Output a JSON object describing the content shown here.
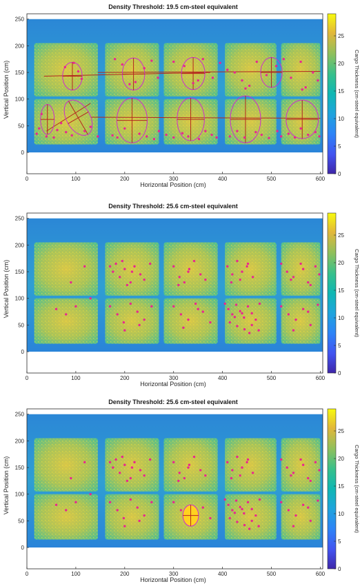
{
  "figure": {
    "colormap": "parula",
    "panels": [
      {
        "title": "Density Threshold: 19.5 cm-steel equivalent",
        "xlabel": "Horizontal Position (cm)",
        "ylabel": "Vertical Position (cm)",
        "colorbar_label": "Cargo Thickness (cm-steel equivalent)",
        "xticks": [
          "0",
          "100",
          "200",
          "300",
          "400",
          "500",
          "600"
        ],
        "yticks": [
          "0",
          "50",
          "100",
          "150",
          "200",
          "250"
        ],
        "cbticks": [
          "0",
          "5",
          "10",
          "15",
          "20",
          "25"
        ]
      },
      {
        "title": "Density Threshold: 25.6 cm-steel equivalent",
        "xlabel": "Horizontal Position (cm)",
        "ylabel": "Vertical Position (cm)",
        "colorbar_label": "Cargo Thickness (cm-steel equivalent)",
        "xticks": [
          "0",
          "100",
          "200",
          "300",
          "400",
          "500",
          "600"
        ],
        "yticks": [
          "0",
          "50",
          "100",
          "150",
          "200",
          "250"
        ],
        "cbticks": [
          "0",
          "5",
          "10",
          "15",
          "20",
          "25"
        ]
      },
      {
        "title": "Density Threshold: 25.6 cm-steel equivalent",
        "xlabel": "Horizontal Position (cm)",
        "ylabel": "Vertical Position (cm)",
        "colorbar_label": "Cargo Thickness (cm-steel equivalent)",
        "xticks": [
          "0",
          "100",
          "200",
          "300",
          "400",
          "500",
          "600"
        ],
        "yticks": [
          "0",
          "50",
          "100",
          "150",
          "200",
          "250"
        ],
        "cbticks": [
          "0",
          "5",
          "10",
          "15",
          "20",
          "25"
        ]
      }
    ]
  },
  "chart_data": [
    {
      "type": "heatmap",
      "title": "Density Threshold: 19.5 cm-steel equivalent",
      "xlabel": "Horizontal Position (cm)",
      "ylabel": "Vertical Position (cm)",
      "colorbar_label": "Cargo Thickness (cm-steel equivalent)",
      "xlim": [
        0,
        605
      ],
      "ylim": [
        -40,
        260
      ],
      "clim": [
        0,
        29
      ],
      "xticks": [
        0,
        100,
        200,
        300,
        400,
        500,
        600
      ],
      "yticks": [
        0,
        50,
        100,
        150,
        200,
        250
      ],
      "cbticks": [
        0,
        5,
        10,
        15,
        20,
        25
      ],
      "regions": [
        {
          "x": [
            15,
            145
          ],
          "y": [
            105,
            205
          ]
        },
        {
          "x": [
            160,
            270
          ],
          "y": [
            105,
            205
          ]
        },
        {
          "x": [
            280,
            390
          ],
          "y": [
            105,
            205
          ]
        },
        {
          "x": [
            405,
            510
          ],
          "y": [
            105,
            205
          ]
        },
        {
          "x": [
            520,
            600
          ],
          "y": [
            105,
            205
          ]
        },
        {
          "x": [
            15,
            145
          ],
          "y": [
            15,
            100
          ]
        },
        {
          "x": [
            160,
            270
          ],
          "y": [
            15,
            100
          ]
        },
        {
          "x": [
            280,
            390
          ],
          "y": [
            15,
            100
          ]
        },
        {
          "x": [
            405,
            510
          ],
          "y": [
            15,
            100
          ]
        },
        {
          "x": [
            520,
            600
          ],
          "y": [
            15,
            100
          ]
        }
      ],
      "ellipses": [
        {
          "cx": 93,
          "cy": 143,
          "rx": 20,
          "ry": 26,
          "angle": 0
        },
        {
          "cx": 218,
          "cy": 147,
          "rx": 23,
          "ry": 30,
          "angle": 0
        },
        {
          "cx": 340,
          "cy": 148,
          "rx": 24,
          "ry": 30,
          "angle": 0
        },
        {
          "cx": 500,
          "cy": 150,
          "rx": 22,
          "ry": 28,
          "angle": 0
        },
        {
          "cx": 42,
          "cy": 62,
          "rx": 14,
          "ry": 28,
          "angle": 0
        },
        {
          "cx": 105,
          "cy": 65,
          "rx": 24,
          "ry": 36,
          "angle": 30
        },
        {
          "cx": 215,
          "cy": 60,
          "rx": 31,
          "ry": 42,
          "angle": 0
        },
        {
          "cx": 335,
          "cy": 62,
          "rx": 28,
          "ry": 40,
          "angle": 0
        },
        {
          "cx": 447,
          "cy": 62,
          "rx": 31,
          "ry": 44,
          "angle": 0
        },
        {
          "cx": 563,
          "cy": 62,
          "rx": 33,
          "ry": 36,
          "angle": 0
        }
      ],
      "lines": [
        {
          "x": [
            35,
            375
          ],
          "y": [
            143,
            150
          ]
        },
        {
          "x": [
            145,
            600
          ],
          "y": [
            150,
            152
          ]
        },
        {
          "x": [
            130,
            600
          ],
          "y": [
            66,
            64
          ]
        },
        {
          "x": [
            40,
            130
          ],
          "y": [
            40,
            92
          ]
        }
      ],
      "series": [
        {
          "x": [
            20,
            25,
            40,
            30,
            55,
            62,
            70,
            80,
            92,
            118,
            130,
            145,
            175,
            185,
            200,
            230,
            245,
            260,
            270,
            285,
            300,
            318,
            330,
            352,
            365,
            378,
            388,
            415,
            430,
            445,
            468,
            480,
            495,
            512,
            520,
            535,
            548,
            560,
            575,
            590,
            598,
            210,
            222,
            340,
            350,
            447,
            455,
            563,
            570
          ],
          "y": [
            35,
            45,
            30,
            72,
            28,
            42,
            55,
            38,
            32,
            40,
            48,
            30,
            32,
            28,
            45,
            35,
            30,
            25,
            40,
            33,
            28,
            36,
            30,
            25,
            40,
            33,
            28,
            30,
            40,
            28,
            38,
            33,
            27,
            40,
            30,
            35,
            28,
            45,
            33,
            38,
            30,
            128,
            132,
            130,
            135,
            120,
            125,
            118,
            122
          ]
        },
        {
          "x": [
            78,
            96,
            105,
            112,
            180,
            195,
            240,
            255,
            268,
            300,
            322,
            360,
            380,
            395,
            410,
            425,
            440,
            470,
            490,
            510,
            525,
            540,
            560,
            585,
            595
          ],
          "y": [
            160,
            168,
            152,
            138,
            175,
            165,
            158,
            172,
            140,
            170,
            162,
            175,
            140,
            168,
            155,
            150,
            135,
            170,
            145,
            162,
            175,
            140,
            170,
            150,
            135
          ]
        }
      ]
    },
    {
      "type": "heatmap",
      "title": "Density Threshold: 25.6 cm-steel equivalent",
      "xlabel": "Horizontal Position (cm)",
      "ylabel": "Vertical Position (cm)",
      "colorbar_label": "Cargo Thickness (cm-steel equivalent)",
      "xlim": [
        0,
        605
      ],
      "ylim": [
        -40,
        260
      ],
      "clim": [
        0,
        29
      ],
      "xticks": [
        0,
        100,
        200,
        300,
        400,
        500,
        600
      ],
      "yticks": [
        0,
        50,
        100,
        150,
        200,
        250
      ],
      "cbticks": [
        0,
        5,
        10,
        15,
        20,
        25
      ],
      "series": [
        {
          "x": [
            90,
            118,
            130,
            100,
            60,
            80,
            170,
            176,
            182,
            190,
            200,
            212,
            220,
            232,
            240,
            252,
            195,
            205,
            215,
            300,
            312,
            322,
            332,
            342,
            355,
            365,
            310,
            330,
            410,
            420,
            430,
            440,
            452,
            462,
            418,
            436,
            450,
            520,
            532,
            545,
            560,
            575,
            590,
            598,
            540,
            565,
            580,
            170,
            185,
            198,
            212,
            226,
            240,
            255,
            200,
            230,
            300,
            315,
            330,
            345,
            360,
            375,
            320,
            350,
            405,
            412,
            420,
            428,
            436,
            444,
            452,
            460,
            468,
            476,
            415,
            430,
            445,
            460,
            474,
            425,
            440,
            455,
            520,
            535,
            550,
            565,
            580,
            595,
            545,
            575
          ],
          "y": [
            130,
            160,
            100,
            85,
            80,
            70,
            160,
            150,
            165,
            140,
            155,
            130,
            160,
            145,
            135,
            165,
            170,
            125,
            150,
            160,
            140,
            130,
            155,
            170,
            145,
            135,
            125,
            150,
            160,
            145,
            170,
            150,
            165,
            140,
            130,
            135,
            160,
            165,
            150,
            140,
            165,
            130,
            160,
            145,
            135,
            155,
            125,
            85,
            70,
            55,
            90,
            75,
            60,
            85,
            40,
            50,
            85,
            70,
            60,
            90,
            75,
            55,
            45,
            80,
            90,
            80,
            70,
            88,
            76,
            64,
            85,
            72,
            60,
            90,
            55,
            48,
            42,
            50,
            40,
            65,
            72,
            35,
            85,
            70,
            60,
            80,
            50,
            88,
            40,
            75
          ]
        }
      ]
    },
    {
      "type": "heatmap",
      "title": "Density Threshold: 25.6 cm-steel equivalent",
      "xlabel": "Horizontal Position (cm)",
      "ylabel": "Vertical Position (cm)",
      "colorbar_label": "Cargo Thickness (cm-steel equivalent)",
      "xlim": [
        0,
        605
      ],
      "ylim": [
        -40,
        260
      ],
      "clim": [
        0,
        29
      ],
      "xticks": [
        0,
        100,
        200,
        300,
        400,
        500,
        600
      ],
      "yticks": [
        0,
        50,
        100,
        150,
        200,
        250
      ],
      "cbticks": [
        0,
        5,
        10,
        15,
        20,
        25
      ],
      "ellipses": [
        {
          "cx": 335,
          "cy": 60,
          "rx": 16,
          "ry": 20,
          "angle": 0,
          "fill": "#ffd21f"
        }
      ],
      "series": [
        {
          "x": [
            90,
            118,
            130,
            100,
            60,
            80,
            170,
            176,
            182,
            190,
            200,
            212,
            220,
            232,
            240,
            252,
            195,
            205,
            215,
            300,
            312,
            322,
            332,
            342,
            355,
            365,
            310,
            330,
            410,
            420,
            430,
            440,
            452,
            462,
            418,
            436,
            450,
            520,
            532,
            545,
            560,
            575,
            590,
            598,
            540,
            565,
            580,
            170,
            185,
            198,
            212,
            226,
            240,
            255,
            200,
            230,
            300,
            315,
            360,
            375,
            405,
            412,
            420,
            428,
            436,
            444,
            452,
            460,
            468,
            476,
            415,
            430,
            445,
            460,
            474,
            425,
            440,
            455,
            520,
            535,
            550,
            565,
            580,
            595,
            545,
            575
          ],
          "y": [
            130,
            160,
            100,
            85,
            80,
            70,
            160,
            150,
            165,
            140,
            155,
            130,
            160,
            145,
            135,
            165,
            170,
            125,
            150,
            160,
            140,
            130,
            155,
            170,
            145,
            135,
            125,
            150,
            160,
            145,
            170,
            150,
            165,
            140,
            130,
            135,
            160,
            165,
            150,
            140,
            165,
            130,
            160,
            145,
            135,
            155,
            125,
            85,
            70,
            55,
            90,
            75,
            60,
            85,
            40,
            50,
            85,
            70,
            75,
            55,
            90,
            80,
            70,
            88,
            76,
            64,
            85,
            72,
            60,
            90,
            55,
            48,
            42,
            50,
            40,
            65,
            72,
            35,
            85,
            70,
            60,
            80,
            50,
            88,
            40,
            75
          ]
        }
      ]
    }
  ]
}
